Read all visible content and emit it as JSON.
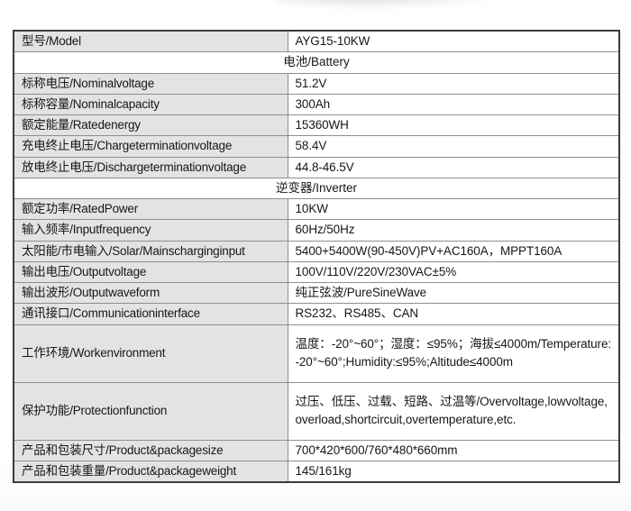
{
  "page": {
    "background": "#ffffff"
  },
  "colors": {
    "label_cell_background": "#e3e3e3",
    "value_cell_background": "#ffffff",
    "outer_border": "#3c3c3c",
    "inner_border": "#8f8f8f",
    "text": "#171717"
  },
  "table": {
    "rows": [
      {
        "type": "spec",
        "label": "型号/Model",
        "value": "AYG15-10KW"
      },
      {
        "type": "section",
        "title": "电池/Battery"
      },
      {
        "type": "spec",
        "label": "标称电压/Nominalvoltage",
        "value": "51.2V"
      },
      {
        "type": "spec",
        "label": "标称容量/Nominalcapacity",
        "value": "300Ah"
      },
      {
        "type": "spec",
        "label": "额定能量/Ratedenergy",
        "value": "15360WH"
      },
      {
        "type": "spec",
        "label": "充电终止电压/Chargeterminationvoltage",
        "value": "58.4V"
      },
      {
        "type": "spec",
        "label": "放电终止电压/Dischargeterminationvoltage",
        "value": "44.8-46.5V"
      },
      {
        "type": "section",
        "title": "逆变器/Inverter"
      },
      {
        "type": "spec",
        "label": "额定功率/RatedPower",
        "value": "10KW"
      },
      {
        "type": "spec",
        "label": "输入频率/Inputfrequency",
        "value": "60Hz/50Hz"
      },
      {
        "type": "spec",
        "label": "太阳能/市电输入/Solar/Mainscharginginput",
        "value": "5400+5400W(90-450V)PV+AC160A，MPPT160A"
      },
      {
        "type": "spec",
        "label": "输出电压/Outputvoltage",
        "value": "100V/110V/220V/230VAC±5%"
      },
      {
        "type": "spec",
        "label": "输出波形/Outputwaveform",
        "value": "纯正弦波/PureSineWave"
      },
      {
        "type": "spec",
        "label": "通讯接口/Communicationinterface",
        "value": "RS232、RS485、CAN"
      },
      {
        "type": "spec",
        "label": "工作环境/Workenvironment",
        "value": "温度：-20°~60°；湿度：≤95%；海拔≤4000m/Temperature:-20°~60°;Humidity:≤95%;Altitude≤4000m",
        "tall": true
      },
      {
        "type": "spec",
        "label": "保护功能/Protectionfunction",
        "value": "过压、低压、过载、短路、过温等/Overvoltage,lowvoltage,overload,shortcircuit,overtemperature,etc.",
        "tall": true
      },
      {
        "type": "spec",
        "label": "产品和包装尺寸/Product&packagesize",
        "value": "700*420*600/760*480*660mm"
      },
      {
        "type": "spec",
        "label": "产品和包装重量/Product&packageweight",
        "value": "145/161kg"
      }
    ]
  }
}
